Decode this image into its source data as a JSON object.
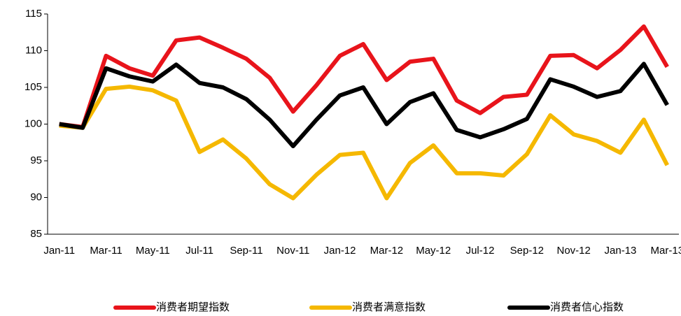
{
  "chart_data": {
    "type": "line",
    "categories": [
      "Jan-11",
      null,
      "Mar-11",
      null,
      "May-11",
      null,
      "Jul-11",
      null,
      "Sep-11",
      null,
      "Nov-11",
      null,
      "Jan-12",
      null,
      "Mar-12",
      null,
      "May-12",
      null,
      "Jul-12",
      null,
      "Sep-12",
      null,
      "Nov-12",
      null,
      "Jan-13",
      null,
      "Mar-13"
    ],
    "series": [
      {
        "name": "消费者期望指数",
        "color": "#e8141b",
        "values": [
          100,
          99.6,
          109.3,
          107.6,
          106.6,
          111.4,
          111.8,
          110.4,
          108.9,
          106.3,
          101.7,
          105.3,
          109.3,
          110.9,
          106,
          108.5,
          108.9,
          103.2,
          101.5,
          103.7,
          104,
          109.3,
          109.4,
          107.6,
          110.1,
          113.3,
          107.8
        ]
      },
      {
        "name": "消费者满意指数",
        "color": "#f5b800",
        "values": [
          99.8,
          99.5,
          104.8,
          105.1,
          104.6,
          103.2,
          96.2,
          97.9,
          95.3,
          91.8,
          89.9,
          93.1,
          95.8,
          96.1,
          89.9,
          94.7,
          97.1,
          93.3,
          93.3,
          93,
          95.9,
          101.2,
          98.6,
          97.7,
          96.1,
          100.6,
          94.4
        ]
      },
      {
        "name": "消费者信心指数",
        "color": "#000000",
        "values": [
          100,
          99.5,
          107.6,
          106.5,
          105.8,
          108.1,
          105.6,
          105,
          103.4,
          100.6,
          97,
          100.6,
          103.9,
          105,
          100,
          103,
          104.2,
          99.2,
          98.2,
          99.3,
          100.7,
          106.1,
          105.1,
          103.7,
          104.5,
          108.2,
          102.6
        ]
      }
    ],
    "ylim": [
      85,
      115
    ],
    "yticks": [
      85,
      90,
      95,
      100,
      105,
      110,
      115
    ],
    "grid": false,
    "legend": "bottom"
  }
}
